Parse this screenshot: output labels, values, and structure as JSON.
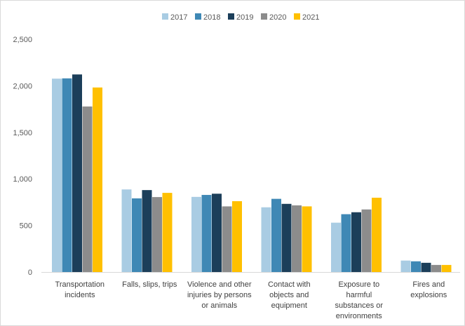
{
  "chart_data": {
    "type": "bar",
    "categories": [
      [
        "Transportation",
        "incidents"
      ],
      [
        "Falls, slips, trips"
      ],
      [
        "Violence and other",
        "injuries by persons",
        "or animals"
      ],
      [
        "Contact with",
        "objects and",
        "equipment"
      ],
      [
        "Exposure to",
        "harmful",
        "substances or",
        "environments"
      ],
      [
        "Fires and",
        "explosions"
      ]
    ],
    "series": [
      {
        "name": "2017",
        "color": "#a9cce3",
        "values": [
          2077,
          887,
          807,
          695,
          530,
          123
        ]
      },
      {
        "name": "2018",
        "color": "#3f88b5",
        "values": [
          2080,
          791,
          828,
          786,
          621,
          115
        ]
      },
      {
        "name": "2019",
        "color": "#1c3f5a",
        "values": [
          2122,
          880,
          841,
          732,
          642,
          99
        ]
      },
      {
        "name": "2020",
        "color": "#8c8c8c",
        "values": [
          1778,
          805,
          705,
          716,
          672,
          76
        ]
      },
      {
        "name": "2021",
        "color": "#ffc000",
        "values": [
          1982,
          850,
          761,
          705,
          798,
          76
        ]
      }
    ],
    "ylim": [
      0,
      2500
    ],
    "yticks": [
      0,
      500,
      1000,
      1500,
      2000,
      2500
    ],
    "ytick_labels": [
      "0",
      "500",
      "1,000",
      "1,500",
      "2,000",
      "2,500"
    ],
    "grid": false,
    "legend_position": "top-center"
  }
}
